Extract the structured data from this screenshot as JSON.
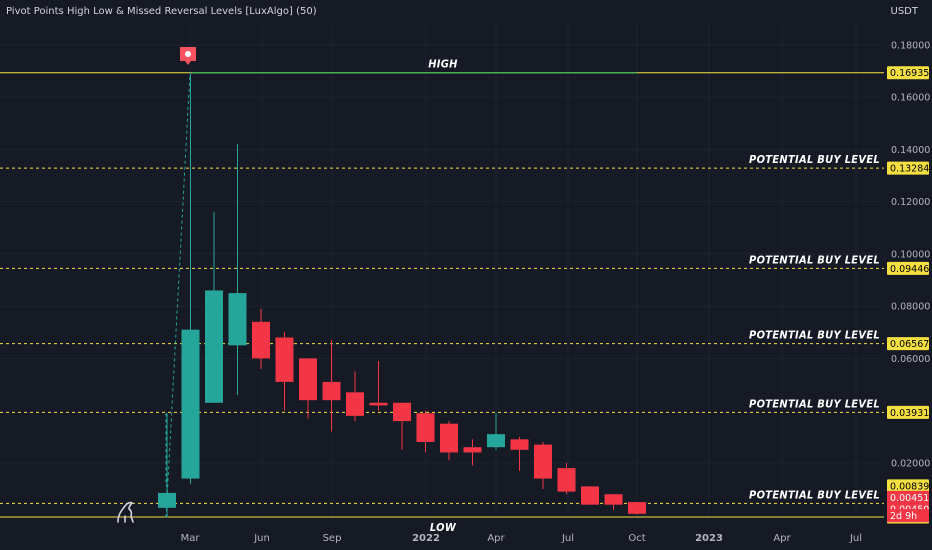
{
  "header": {
    "indicator_title": "Pivot Points High Low & Missed Reversal Levels [LuxAlgo] (50)",
    "currency": "USDT"
  },
  "colors": {
    "background": "#161a25",
    "grid": "#1f2330",
    "bull": "#26a69a",
    "bear": "#f23645",
    "level": "#f5e042",
    "high_line": "#4caf50",
    "text": "#ffffff",
    "axis_text": "#b2b5be",
    "pivot_marker": "#f7525f"
  },
  "chart_data": {
    "type": "candlestick",
    "y_axis": {
      "ticks": [
        "0.18000",
        "0.16000",
        "0.14000",
        "0.12000",
        "0.10000",
        "0.08000",
        "0.06000",
        "0.02000"
      ],
      "ylim": [
        -0.0011,
        0.188
      ]
    },
    "x_axis": {
      "labels": [
        "Mar",
        "Jun",
        "Sep",
        "2022",
        "Apr",
        "Jul",
        "Oct",
        "2023",
        "Apr",
        "Jul"
      ]
    },
    "candles": [
      {
        "month": "2021-02",
        "open": 0.0028,
        "high": 0.039,
        "low": -0.0008,
        "close": 0.0085
      },
      {
        "month": "2021-03",
        "open": 0.014,
        "high": 0.1694,
        "low": 0.012,
        "close": 0.071
      },
      {
        "month": "2021-04",
        "open": 0.043,
        "high": 0.116,
        "low": 0.043,
        "close": 0.086
      },
      {
        "month": "2021-05",
        "open": 0.065,
        "high": 0.142,
        "low": 0.046,
        "close": 0.085
      },
      {
        "month": "2021-06",
        "open": 0.074,
        "high": 0.079,
        "low": 0.056,
        "close": 0.06
      },
      {
        "month": "2021-07",
        "open": 0.068,
        "high": 0.07,
        "low": 0.04,
        "close": 0.051
      },
      {
        "month": "2021-08",
        "open": 0.06,
        "high": 0.06,
        "low": 0.037,
        "close": 0.044
      },
      {
        "month": "2021-09",
        "open": 0.051,
        "high": 0.067,
        "low": 0.032,
        "close": 0.044
      },
      {
        "month": "2021-10",
        "open": 0.047,
        "high": 0.055,
        "low": 0.036,
        "close": 0.038
      },
      {
        "month": "2021-11",
        "open": 0.043,
        "high": 0.059,
        "low": 0.04,
        "close": 0.042
      },
      {
        "month": "2021-12",
        "open": 0.043,
        "high": 0.043,
        "low": 0.025,
        "close": 0.036
      },
      {
        "month": "2022-01",
        "open": 0.039,
        "high": 0.04,
        "low": 0.024,
        "close": 0.028
      },
      {
        "month": "2022-02",
        "open": 0.035,
        "high": 0.036,
        "low": 0.021,
        "close": 0.024
      },
      {
        "month": "2022-03",
        "open": 0.026,
        "high": 0.029,
        "low": 0.019,
        "close": 0.024
      },
      {
        "month": "2022-04",
        "open": 0.026,
        "high": 0.039,
        "low": 0.025,
        "close": 0.031
      },
      {
        "month": "2022-05",
        "open": 0.029,
        "high": 0.03,
        "low": 0.017,
        "close": 0.025
      },
      {
        "month": "2022-06",
        "open": 0.027,
        "high": 0.028,
        "low": 0.01,
        "close": 0.014
      },
      {
        "month": "2022-07",
        "open": 0.018,
        "high": 0.02,
        "low": 0.008,
        "close": 0.009
      },
      {
        "month": "2022-08",
        "open": 0.011,
        "high": 0.011,
        "low": 0.004,
        "close": 0.004
      },
      {
        "month": "2022-09",
        "open": 0.008,
        "high": 0.008,
        "low": 0.002,
        "close": 0.004
      },
      {
        "month": "2022-10",
        "open": 0.005,
        "high": 0.005,
        "low": 0.0002,
        "close": 0.0005
      }
    ],
    "levels": [
      {
        "value": 0.16935,
        "label": "0.16935",
        "text": "HIGH",
        "style": "solid",
        "kind": "high"
      },
      {
        "value": 0.13284,
        "label": "0.13284",
        "text": "POTENTIAL BUY LEVEL",
        "style": "dashed",
        "kind": "buy"
      },
      {
        "value": 0.09446,
        "label": "0.09446",
        "text": "POTENTIAL BUY LEVEL",
        "style": "dashed",
        "kind": "buy"
      },
      {
        "value": 0.06567,
        "label": "0.06567",
        "text": "POTENTIAL BUY LEVEL",
        "style": "dashed",
        "kind": "buy"
      },
      {
        "value": 0.03931,
        "label": "0.03931",
        "text": "POTENTIAL BUY LEVEL",
        "style": "dashed",
        "kind": "buy"
      },
      {
        "value": 0.00451,
        "label": "0.00451",
        "text": "POTENTIAL BUY LEVEL",
        "style": "dashed",
        "kind": "buy"
      },
      {
        "value": -0.0007,
        "label": "−0.00070",
        "text": "LOW",
        "style": "solid",
        "kind": "low"
      }
    ],
    "price_labels": [
      {
        "value": 0.00839,
        "label": "0.00839",
        "kind": "level"
      },
      {
        "value": 0.00451,
        "label": "0.00451",
        "kind": "price"
      },
      {
        "value": 0.0045,
        "label": "0.00450",
        "kind": "price"
      },
      {
        "value": 0.0045,
        "label": "2d 9h",
        "kind": "countdown"
      }
    ]
  }
}
